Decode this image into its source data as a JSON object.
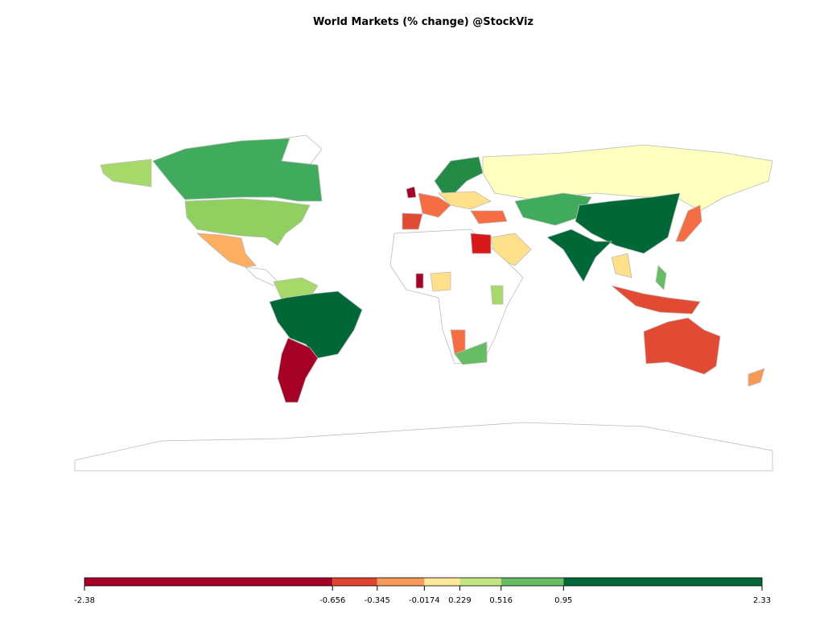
{
  "title": "World Markets (% change) @StockViz",
  "legend": {
    "range": [
      -2.38,
      2.33
    ],
    "ticks": [
      -2.38,
      -0.656,
      -0.345,
      -0.0174,
      0.229,
      0.516,
      0.95,
      2.33
    ],
    "colors": [
      "#a50026",
      "#e0432f",
      "#f79a58",
      "#fee99a",
      "#c4e47f",
      "#66bd63",
      "#006837"
    ]
  }
}
